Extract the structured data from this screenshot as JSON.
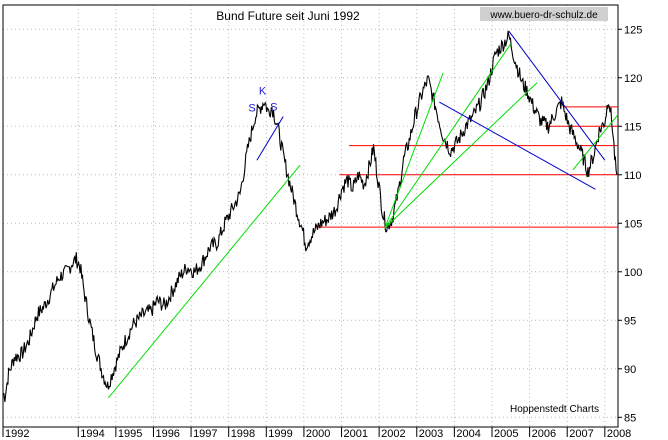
{
  "chart_data": {
    "type": "line",
    "title": "Bund Future seit Juni 1992",
    "watermark": "www.buero-dr-schulz.de",
    "credit": "Hoppenstedt Charts",
    "xlabel": "",
    "ylabel": "",
    "grid": true,
    "xlim": [
      1992.0,
      2008.35
    ],
    "ylim": [
      84,
      127.5
    ],
    "y_ticks": [
      85,
      90,
      95,
      100,
      105,
      110,
      115,
      120,
      125
    ],
    "x_ticks": [
      {
        "label": "1992",
        "x": 1992.0
      },
      {
        "label": "1994",
        "x": 1994.0
      },
      {
        "label": "1995",
        "x": 1995.0
      },
      {
        "label": "1996",
        "x": 1996.0
      },
      {
        "label": "1997",
        "x": 1997.0
      },
      {
        "label": "1998",
        "x": 1998.0
      },
      {
        "label": "1999",
        "x": 1999.0
      },
      {
        "label": "2000",
        "x": 2000.0
      },
      {
        "label": "2001",
        "x": 2001.0
      },
      {
        "label": "2002",
        "x": 2002.0
      },
      {
        "label": "2003",
        "x": 2003.0
      },
      {
        "label": "2004",
        "x": 2004.0
      },
      {
        "label": "2005",
        "x": 2005.0
      },
      {
        "label": "2006",
        "x": 2006.0
      },
      {
        "label": "2007",
        "x": 2007.0
      },
      {
        "label": "2008",
        "x": 2008.0
      }
    ],
    "colors": {
      "price": "#000000",
      "support": "#ff0000",
      "uptrend": "#00dd00",
      "downtrend": "#0000cc",
      "grid": "#b8b8b8"
    },
    "series": [
      {
        "points": [
          [
            1992.0,
            87.5
          ],
          [
            1992.05,
            87.2
          ],
          [
            1992.15,
            89.5
          ],
          [
            1992.3,
            91.2
          ],
          [
            1992.5,
            91.5
          ],
          [
            1992.7,
            93.0
          ],
          [
            1992.9,
            95.5
          ],
          [
            1993.1,
            96.5
          ],
          [
            1993.3,
            98.0
          ],
          [
            1993.5,
            99.5
          ],
          [
            1993.7,
            100.0
          ],
          [
            1993.85,
            101.0
          ],
          [
            1993.95,
            101.3
          ],
          [
            1994.05,
            100.5
          ],
          [
            1994.2,
            97.0
          ],
          [
            1994.35,
            94.0
          ],
          [
            1994.5,
            91.5
          ],
          [
            1994.65,
            89.5
          ],
          [
            1994.78,
            88.2
          ],
          [
            1994.9,
            89.5
          ],
          [
            1995.0,
            90.5
          ],
          [
            1995.2,
            92.5
          ],
          [
            1995.45,
            94.5
          ],
          [
            1995.7,
            95.5
          ],
          [
            1995.95,
            96.0
          ],
          [
            1996.1,
            97.0
          ],
          [
            1996.3,
            96.5
          ],
          [
            1996.5,
            98.0
          ],
          [
            1996.7,
            99.5
          ],
          [
            1996.9,
            100.5
          ],
          [
            1997.1,
            100.0
          ],
          [
            1997.3,
            101.0
          ],
          [
            1997.5,
            102.5
          ],
          [
            1997.7,
            103.0
          ],
          [
            1997.9,
            105.0
          ],
          [
            1998.1,
            106.5
          ],
          [
            1998.3,
            108.0
          ],
          [
            1998.5,
            112.5
          ],
          [
            1998.7,
            116.0
          ],
          [
            1998.85,
            117.0
          ],
          [
            1998.95,
            117.6
          ],
          [
            1999.05,
            116.5
          ],
          [
            1999.15,
            117.0
          ],
          [
            1999.3,
            115.0
          ],
          [
            1999.45,
            112.0
          ],
          [
            1999.6,
            109.5
          ],
          [
            1999.8,
            106.5
          ],
          [
            1999.95,
            104.5
          ],
          [
            2000.05,
            102.8
          ],
          [
            2000.25,
            104.0
          ],
          [
            2000.45,
            105.0
          ],
          [
            2000.65,
            105.5
          ],
          [
            2000.85,
            106.5
          ],
          [
            2001.0,
            108.5
          ],
          [
            2001.15,
            109.5
          ],
          [
            2001.3,
            108.5
          ],
          [
            2001.45,
            110.0
          ],
          [
            2001.6,
            109.0
          ],
          [
            2001.75,
            111.0
          ],
          [
            2001.85,
            112.8
          ],
          [
            2001.95,
            110.0
          ],
          [
            2002.1,
            106.0
          ],
          [
            2002.2,
            104.6
          ],
          [
            2002.35,
            105.5
          ],
          [
            2002.5,
            108.0
          ],
          [
            2002.65,
            111.5
          ],
          [
            2002.8,
            113.5
          ],
          [
            2002.95,
            116.0
          ],
          [
            2003.15,
            118.5
          ],
          [
            2003.3,
            119.8
          ],
          [
            2003.5,
            117.0
          ],
          [
            2003.7,
            114.0
          ],
          [
            2003.9,
            112.5
          ],
          [
            2004.1,
            113.5
          ],
          [
            2004.3,
            115.0
          ],
          [
            2004.5,
            116.0
          ],
          [
            2004.7,
            117.5
          ],
          [
            2004.9,
            119.5
          ],
          [
            2005.1,
            122.5
          ],
          [
            2005.3,
            123.5
          ],
          [
            2005.45,
            124.3
          ],
          [
            2005.6,
            122.0
          ],
          [
            2005.8,
            119.5
          ],
          [
            2005.95,
            118.5
          ],
          [
            2006.1,
            117.0
          ],
          [
            2006.3,
            115.5
          ],
          [
            2006.5,
            115.0
          ],
          [
            2006.7,
            116.5
          ],
          [
            2006.85,
            117.5
          ],
          [
            2007.05,
            115.0
          ],
          [
            2007.3,
            113.0
          ],
          [
            2007.45,
            111.5
          ],
          [
            2007.55,
            110.3
          ],
          [
            2007.7,
            112.0
          ],
          [
            2007.85,
            114.5
          ],
          [
            2008.0,
            115.5
          ],
          [
            2008.1,
            118.0
          ],
          [
            2008.2,
            115.0
          ],
          [
            2008.28,
            111.0
          ],
          [
            2008.32,
            110.0
          ]
        ]
      }
    ],
    "support_lines": [
      {
        "y": 117.0,
        "x0": 2006.9,
        "x1": 2008.35
      },
      {
        "y": 115.0,
        "x0": 2006.4,
        "x1": 2008.35
      },
      {
        "y": 113.0,
        "x0": 2001.2,
        "x1": 2008.35
      },
      {
        "y": 110.0,
        "x0": 2000.95,
        "x1": 2008.35
      },
      {
        "y": 104.6,
        "x0": 2000.3,
        "x1": 2008.35
      }
    ],
    "uptrend_lines": [
      {
        "x0": 1994.8,
        "y0": 87.0,
        "x1": 1999.9,
        "y1": 111.0
      },
      {
        "x0": 2002.15,
        "y0": 104.5,
        "x1": 2003.7,
        "y1": 120.5
      },
      {
        "x0": 2002.15,
        "y0": 104.5,
        "x1": 2005.5,
        "y1": 123.5
      },
      {
        "x0": 2002.15,
        "y0": 104.5,
        "x1": 2006.2,
        "y1": 119.5
      },
      {
        "x0": 2007.15,
        "y0": 110.5,
        "x1": 2008.35,
        "y1": 116.2
      }
    ],
    "downtrend_lines": [
      {
        "x0": 1998.75,
        "y0": 111.5,
        "x1": 1999.45,
        "y1": 116.0
      },
      {
        "x0": 2003.6,
        "y0": 117.5,
        "x1": 2007.75,
        "y1": 108.5
      },
      {
        "x0": 2005.45,
        "y0": 124.8,
        "x1": 2008.0,
        "y1": 111.5
      }
    ],
    "annotations": [
      {
        "text": "K",
        "x": 1998.9,
        "y": 118.3
      },
      {
        "text": "S",
        "x": 1998.62,
        "y": 116.5
      },
      {
        "text": "S",
        "x": 1999.2,
        "y": 116.6
      }
    ]
  }
}
